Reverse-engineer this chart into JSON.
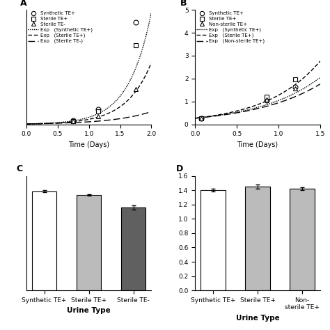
{
  "panel_A": {
    "title": "A",
    "xlabel": "Time (Days)",
    "xlim": [
      0,
      2.0
    ],
    "ylim": [
      0,
      5.5
    ],
    "xticks": [
      0,
      0.5,
      1.0,
      1.5,
      2.0
    ],
    "yticks": [],
    "series": {
      "synthetic_te_plus": {
        "x": [
          0.75,
          1.15,
          1.75
        ],
        "y": [
          0.18,
          0.72,
          4.9
        ],
        "marker": "o",
        "label": "Synthetic TE+"
      },
      "sterile_te_plus": {
        "x": [
          0.75,
          1.15,
          1.75
        ],
        "y": [
          0.16,
          0.62,
          3.8
        ],
        "marker": "s",
        "label": "Sterile TE+"
      },
      "sterile_te_minus": {
        "x": [
          0.75,
          1.15,
          1.75
        ],
        "y": [
          0.14,
          0.38,
          1.7
        ],
        "marker": "^",
        "label": "Sterile TE-"
      }
    },
    "fits": {
      "synthetic_te_plus": {
        "r0": 0.022,
        "mu": 2.75,
        "style": "dotted",
        "label": "Exp   (Synthetic TE+)"
      },
      "sterile_te_plus": {
        "r0": 0.02,
        "mu": 2.5,
        "style": "dashed_dense",
        "label": "Exp   (Sterile TE+)"
      },
      "sterile_te_minus": {
        "r0": 0.025,
        "mu": 1.6,
        "style": "dashed_loose",
        "label": "Exp   (Sterile TE-)"
      }
    },
    "legend": [
      {
        "marker": "o",
        "linestyle": "none",
        "label": "Synthetic TE+"
      },
      {
        "marker": "s",
        "linestyle": "none",
        "label": "Sterile TE+"
      },
      {
        "marker": "^",
        "linestyle": "none",
        "label": "Sterile TE-"
      },
      {
        "marker": "none",
        "linestyle": "dotted",
        "label": "Exp   (Synthetic TE+)"
      },
      {
        "marker": "none",
        "linestyle": "dashed_dense",
        "label": "Exp   (Sterile TE+)"
      },
      {
        "marker": "none",
        "linestyle": "dashed_loose",
        "label": "Exp   (Sterile TE-)"
      }
    ]
  },
  "panel_B": {
    "title": "B",
    "xlabel": "Time (Days)",
    "xlim": [
      0.0,
      1.5
    ],
    "ylim": [
      0,
      5
    ],
    "xticks": [
      0.0,
      0.5,
      1.0,
      1.5
    ],
    "yticks": [
      0,
      1,
      2,
      3,
      4,
      5
    ],
    "series": {
      "synthetic_te_plus": {
        "x": [
          0.07,
          0.86,
          1.2
        ],
        "y": [
          0.27,
          1.05,
          1.62
        ],
        "marker": "o",
        "label": "Synthetic TE+"
      },
      "sterile_te_plus": {
        "x": [
          0.07,
          0.86,
          1.2
        ],
        "y": [
          0.27,
          1.22,
          1.97
        ],
        "marker": "s",
        "label": "Sterile TE+"
      },
      "non_sterile_te_plus": {
        "x": [
          0.07,
          0.86,
          1.2
        ],
        "y": [
          0.27,
          1.08,
          1.58
        ],
        "marker": "^",
        "label": "Non-sterile TE+"
      }
    },
    "fits": {
      "synthetic_te_plus": {
        "r0": 0.27,
        "mu": 1.35,
        "style": "dotted",
        "label": "Exp   (Synthetic TE+)"
      },
      "sterile_te_plus": {
        "r0": 0.27,
        "mu": 1.55,
        "style": "dashed_dense",
        "label": "Exp   (Sterile TE+)"
      },
      "non_sterile_te_plus": {
        "r0": 0.27,
        "mu": 1.25,
        "style": "dashed_loose",
        "label": "Exp   (Non-sterile TE+)"
      }
    },
    "legend": [
      {
        "marker": "o",
        "linestyle": "none",
        "label": "Synthetic TE+"
      },
      {
        "marker": "s",
        "linestyle": "none",
        "label": "Sterile TE+"
      },
      {
        "marker": "^",
        "linestyle": "none",
        "label": "Non-sterile TE+"
      },
      {
        "marker": "none",
        "linestyle": "dotted",
        "label": "Exp   (Synthetic TE+)"
      },
      {
        "marker": "none",
        "linestyle": "dashed_dense",
        "label": "Exp   (Sterile TE+)"
      },
      {
        "marker": "none",
        "linestyle": "dashed_loose",
        "label": "Exp   (Non-sterile TE+)"
      }
    ]
  },
  "panel_C": {
    "title": "C",
    "xlabel": "Urine Type",
    "categories": [
      "Synthetic TE+",
      "Sterile TE+",
      "Sterile TE-"
    ],
    "values": [
      1.56,
      1.5,
      1.3
    ],
    "errors": [
      0.018,
      0.012,
      0.032
    ],
    "colors": [
      "#ffffff",
      "#bbbbbb",
      "#606060"
    ],
    "ylim": [
      0,
      1.8
    ],
    "yticks": []
  },
  "panel_D": {
    "title": "D",
    "xlabel": "Urine Type",
    "categories": [
      "Synthetic TE+",
      "Sterile TE+",
      "Non-\nsterile TE+"
    ],
    "values": [
      1.4,
      1.45,
      1.42
    ],
    "errors": [
      0.018,
      0.03,
      0.018
    ],
    "colors": [
      "#ffffff",
      "#bbbbbb",
      "#bbbbbb"
    ],
    "ylim": [
      0,
      1.6
    ],
    "yticks": [
      0.0,
      0.2,
      0.4,
      0.6,
      0.8,
      1.0,
      1.2,
      1.4,
      1.6
    ]
  },
  "line_styles": {
    "dotted": [
      1,
      1
    ],
    "dashed_dense": [
      4,
      2
    ],
    "dashed_loose": [
      7,
      3
    ]
  },
  "line_color": "#000000",
  "marker_size": 5,
  "line_width": 1.0
}
